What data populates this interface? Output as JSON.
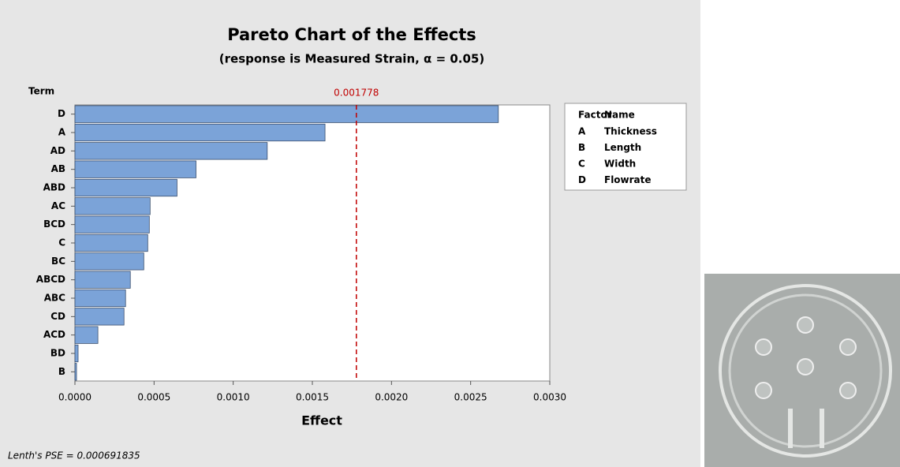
{
  "chart_data": {
    "type": "bar",
    "orientation": "horizontal",
    "title": "Pareto Chart of the Effects",
    "subtitle": "(response is Measured Strain, α = 0.05)",
    "ylabel": "Term",
    "xlabel": "Effect",
    "categories": [
      "D",
      "A",
      "AD",
      "AB",
      "ABD",
      "AC",
      "BCD",
      "C",
      "BC",
      "ABCD",
      "ABC",
      "CD",
      "ACD",
      "BD",
      "B"
    ],
    "values": [
      0.002675,
      0.00158,
      0.001215,
      0.000765,
      0.000645,
      0.000475,
      0.00047,
      0.00046,
      0.000435,
      0.00035,
      0.00032,
      0.00031,
      0.000145,
      2e-05,
      1e-05
    ],
    "color": "#7ba3d8",
    "xlim": [
      0,
      0.003
    ],
    "xticks": [
      {
        "value": 0,
        "label": "0.0000"
      },
      {
        "value": 0.0005,
        "label": "0.0005"
      },
      {
        "value": 0.001,
        "label": "0.0010"
      },
      {
        "value": 0.0015,
        "label": "0.0015"
      },
      {
        "value": 0.002,
        "label": "0.0020"
      },
      {
        "value": 0.0025,
        "label": "0.0025"
      },
      {
        "value": 0.003,
        "label": "0.0030"
      }
    ],
    "reference_line": {
      "value": 0.001778,
      "color": "#c00000"
    },
    "factor_table": {
      "headers": [
        "Factor",
        "Name"
      ],
      "rows": [
        [
          "A",
          "Thickness"
        ],
        [
          "B",
          "Length"
        ],
        [
          "C",
          "Width"
        ],
        [
          "D",
          "Flowrate"
        ]
      ]
    },
    "footnote": "Lenth's PSE = 0.000691835"
  }
}
